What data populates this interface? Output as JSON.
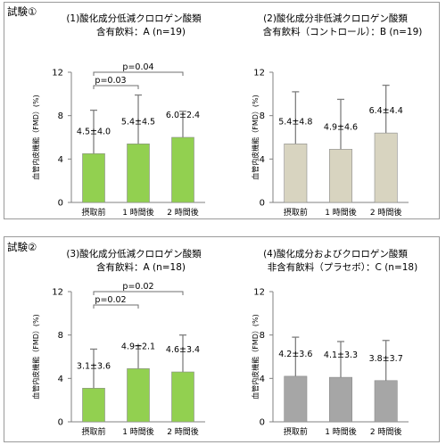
{
  "trials": [
    {
      "label": "試験①"
    },
    {
      "label": "試験②"
    }
  ],
  "colors": {
    "green": "#92d050",
    "beige": "#d8d4c0",
    "gray": "#a6a6a6",
    "error_bar": "#7f7f7f",
    "axis": "#808080"
  },
  "chart_data": [
    {
      "type": "bar",
      "title": "(1)酸化成分低減クロロゲン酸類",
      "subtitle": "含有飲料：A (n=19)",
      "ylabel": "血管内皮機能（FMD）(%)",
      "ylim": [
        0,
        12
      ],
      "yticks": [
        "0",
        "4",
        "8",
        "12"
      ],
      "categories": [
        "摂取前",
        "1 時間後",
        "2 時間後"
      ],
      "values": [
        4.5,
        5.4,
        6.0
      ],
      "errors": [
        4.0,
        4.5,
        2.4
      ],
      "data_labels": [
        "4.5±4.0",
        "5.4±4.5",
        "6.0±2.4"
      ],
      "bar_color": "#92d050",
      "significance": [
        {
          "label": "p=0.03",
          "from": 0,
          "to": 1
        },
        {
          "label": "p=0.04",
          "from": 0,
          "to": 2
        }
      ]
    },
    {
      "type": "bar",
      "title": "(2)酸化成分非低減クロロゲン酸類",
      "subtitle": "含有飲料（コントロール）：B (n=19)",
      "ylabel": "血管内皮機能（FMD）(%)",
      "ylim": [
        0,
        12
      ],
      "yticks": [
        "0",
        "4",
        "8",
        "12"
      ],
      "categories": [
        "摂取前",
        "1 時間後",
        "2 時間後"
      ],
      "values": [
        5.4,
        4.9,
        6.4
      ],
      "errors": [
        4.8,
        4.6,
        4.4
      ],
      "data_labels": [
        "5.4±4.8",
        "4.9±4.6",
        "6.4±4.4"
      ],
      "bar_color": "#d8d4c0",
      "significance": []
    },
    {
      "type": "bar",
      "title": "(3)酸化成分低減クロロゲン酸類",
      "subtitle": "含有飲料：A (n=18)",
      "ylabel": "血管内皮機能（FMD）(%)",
      "ylim": [
        0,
        12
      ],
      "yticks": [
        "0",
        "4",
        "8",
        "12"
      ],
      "categories": [
        "摂取前",
        "1 時間後",
        "2 時間後"
      ],
      "values": [
        3.1,
        4.9,
        4.6
      ],
      "errors": [
        3.6,
        2.1,
        3.4
      ],
      "data_labels": [
        "3.1±3.6",
        "4.9±2.1",
        "4.6±3.4"
      ],
      "bar_color": "#92d050",
      "significance": [
        {
          "label": "p=0.02",
          "from": 0,
          "to": 1
        },
        {
          "label": "p=0.02",
          "from": 0,
          "to": 2
        }
      ]
    },
    {
      "type": "bar",
      "title": "(4)酸化成分およびクロロゲン酸類",
      "subtitle": "非含有飲料（プラセボ）：C (n=18)",
      "ylabel": "血管内皮機能（FMD）(%)",
      "ylim": [
        0,
        12
      ],
      "yticks": [
        "0",
        "4",
        "8",
        "12"
      ],
      "categories": [
        "摂取前",
        "1 時間後",
        "2 時間後"
      ],
      "values": [
        4.2,
        4.1,
        3.8
      ],
      "errors": [
        3.6,
        3.3,
        3.7
      ],
      "data_labels": [
        "4.2±3.6",
        "4.1±3.3",
        "3.8±3.7"
      ],
      "bar_color": "#a6a6a6",
      "significance": []
    }
  ]
}
